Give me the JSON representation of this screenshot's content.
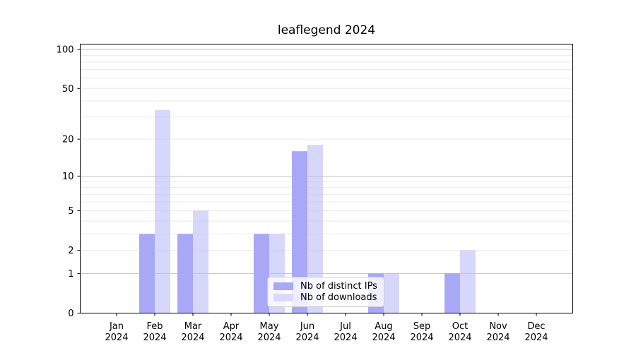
{
  "chart_data": {
    "type": "bar",
    "title": "leaflegend 2024",
    "categories": [
      "Jan 2024",
      "Feb 2024",
      "Mar 2024",
      "Apr 2024",
      "May 2024",
      "Jun 2024",
      "Jul 2024",
      "Aug 2024",
      "Sep 2024",
      "Oct 2024",
      "Nov 2024",
      "Dec 2024"
    ],
    "x_tick_line1": [
      "Jan",
      "Feb",
      "Mar",
      "Apr",
      "May",
      "Jun",
      "Jul",
      "Aug",
      "Sep",
      "Oct",
      "Nov",
      "Dec"
    ],
    "x_tick_line2": "2024",
    "series": [
      {
        "name": "Nb of distinct IPs",
        "color": "#a8a8f7",
        "fill_opacity": 1,
        "legend_color": "#a8a8f7",
        "values": [
          0,
          3,
          3,
          0,
          3,
          16,
          0,
          1,
          0,
          1,
          0,
          0
        ]
      },
      {
        "name": "Nb of downloads",
        "color": "#bcbcf8",
        "fill_opacity": 0.6,
        "legend_color": "#d9d9fb",
        "values": [
          0,
          34,
          5,
          0,
          3,
          18,
          0,
          1,
          0,
          2,
          0,
          0
        ]
      }
    ],
    "xlabel": "",
    "ylabel": "",
    "yscale": "log1p",
    "ylim": [
      0,
      110
    ],
    "y_ticks": [
      0,
      1,
      2,
      5,
      10,
      20,
      50,
      100
    ],
    "y_major_gridlines": [
      1,
      10,
      100
    ],
    "y_minor_gridlines": [
      2,
      3,
      4,
      5,
      6,
      7,
      8,
      9,
      20,
      30,
      40,
      50,
      60,
      70,
      80,
      90
    ],
    "grid": true,
    "legend_position": "lower center",
    "colors": {
      "major_grid": "#c2c2c2",
      "minor_grid": "#ebebeb",
      "axis": "#000000",
      "text": "#000000",
      "background": "#ffffff"
    }
  }
}
